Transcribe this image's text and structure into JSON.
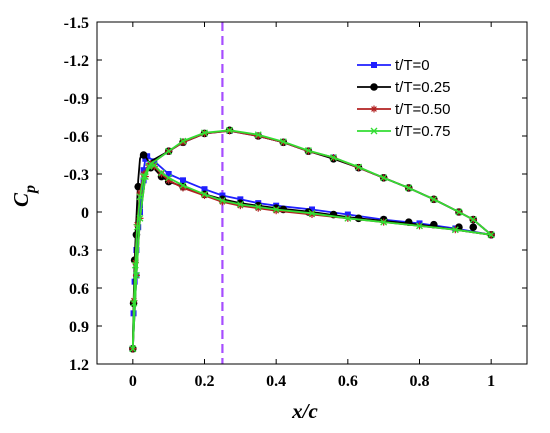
{
  "chart_data": {
    "type": "line",
    "xlabel": "x/c",
    "ylabel_main": "C",
    "ylabel_sub": "p",
    "xlim": [
      -0.1,
      1.1
    ],
    "ylim": [
      1.2,
      -1.5
    ],
    "y_reversed": true,
    "x_ticks": [
      0,
      0.2,
      0.4,
      0.6,
      0.8,
      1
    ],
    "x_tick_labels": [
      "0",
      "0.2",
      "0.4",
      "0.6",
      "0.8",
      "1"
    ],
    "y_ticks": [
      -1.5,
      -1.2,
      -0.9,
      -0.6,
      -0.3,
      0,
      0.3,
      0.6,
      0.9,
      1.2
    ],
    "y_tick_labels": [
      "-1.5",
      "-1.2",
      "-0.9",
      "-0.6",
      "-0.3",
      "0",
      "0.3",
      "0.6",
      "0.9",
      "1.2"
    ],
    "grid": false,
    "legend_position": "top-right",
    "vertical_reference_line": {
      "x": 0.25,
      "color": "#a64dff",
      "style": "dashed"
    },
    "series": [
      {
        "name": "t/T=0",
        "color": "#1f1fff",
        "marker": "square",
        "lower": [
          [
            0,
            1.08
          ],
          [
            0.002,
            0.8
          ],
          [
            0.005,
            0.55
          ],
          [
            0.01,
            0.3
          ],
          [
            0.015,
            0.12
          ],
          [
            0.02,
            -0.05
          ],
          [
            0.025,
            -0.2
          ],
          [
            0.03,
            -0.33
          ],
          [
            0.035,
            -0.42
          ],
          [
            0.04,
            -0.44
          ],
          [
            0.06,
            -0.4
          ],
          [
            0.1,
            -0.3
          ],
          [
            0.14,
            -0.25
          ],
          [
            0.2,
            -0.18
          ],
          [
            0.25,
            -0.13
          ],
          [
            0.3,
            -0.1
          ],
          [
            0.35,
            -0.07
          ],
          [
            0.4,
            -0.05
          ],
          [
            0.5,
            -0.02
          ],
          [
            0.6,
            0.02
          ],
          [
            0.7,
            0.06
          ],
          [
            0.8,
            0.09
          ],
          [
            0.9,
            0.13
          ],
          [
            1.0,
            0.18
          ]
        ],
        "upper": [
          [
            0,
            1.08
          ],
          [
            0.01,
            0.5
          ],
          [
            0.02,
            0.0
          ],
          [
            0.03,
            -0.25
          ],
          [
            0.05,
            -0.38
          ],
          [
            0.1,
            -0.48
          ],
          [
            0.14,
            -0.55
          ],
          [
            0.2,
            -0.62
          ],
          [
            0.27,
            -0.64
          ],
          [
            0.35,
            -0.6
          ],
          [
            0.42,
            -0.55
          ],
          [
            0.49,
            -0.48
          ],
          [
            0.56,
            -0.43
          ],
          [
            0.63,
            -0.35
          ],
          [
            0.7,
            -0.27
          ],
          [
            0.77,
            -0.19
          ],
          [
            0.84,
            -0.1
          ],
          [
            0.91,
            0.0
          ],
          [
            0.95,
            0.06
          ],
          [
            1.0,
            0.18
          ]
        ]
      },
      {
        "name": "t/T=0.25",
        "color": "#000000",
        "marker": "circle",
        "lower": [
          [
            0,
            1.08
          ],
          [
            0.002,
            0.72
          ],
          [
            0.005,
            0.4
          ],
          [
            0.01,
            0.05
          ],
          [
            0.015,
            -0.25
          ],
          [
            0.02,
            -0.42
          ],
          [
            0.025,
            -0.46
          ],
          [
            0.035,
            -0.44
          ],
          [
            0.05,
            -0.37
          ],
          [
            0.08,
            -0.28
          ],
          [
            0.1,
            -0.24
          ],
          [
            0.14,
            -0.2
          ],
          [
            0.2,
            -0.14
          ],
          [
            0.25,
            -0.1
          ],
          [
            0.3,
            -0.07
          ],
          [
            0.35,
            -0.05
          ],
          [
            0.4,
            -0.03
          ],
          [
            0.5,
            0.0
          ],
          [
            0.6,
            0.04
          ],
          [
            0.7,
            0.07
          ],
          [
            0.8,
            0.1
          ],
          [
            0.9,
            0.14
          ],
          [
            1.0,
            0.18
          ]
        ],
        "upper": [
          [
            0,
            1.08
          ],
          [
            0.005,
            0.62
          ],
          [
            0.01,
            0.18
          ],
          [
            0.02,
            -0.15
          ],
          [
            0.035,
            -0.32
          ],
          [
            0.05,
            -0.4
          ],
          [
            0.1,
            -0.48
          ],
          [
            0.14,
            -0.55
          ],
          [
            0.2,
            -0.62
          ],
          [
            0.27,
            -0.645
          ],
          [
            0.35,
            -0.6
          ],
          [
            0.42,
            -0.55
          ],
          [
            0.49,
            -0.48
          ],
          [
            0.56,
            -0.42
          ],
          [
            0.63,
            -0.35
          ],
          [
            0.7,
            -0.27
          ],
          [
            0.77,
            -0.19
          ],
          [
            0.84,
            -0.1
          ],
          [
            0.91,
            0.0
          ],
          [
            0.95,
            0.06
          ],
          [
            1.0,
            0.18
          ]
        ],
        "marker_points": [
          [
            0,
            1.08
          ],
          [
            0.002,
            0.72
          ],
          [
            0.005,
            0.38
          ],
          [
            0.01,
            0.18
          ],
          [
            0.015,
            -0.2
          ],
          [
            0.03,
            -0.45
          ],
          [
            0.05,
            -0.35
          ],
          [
            0.08,
            -0.28
          ],
          [
            0.1,
            -0.24
          ],
          [
            0.14,
            -0.2
          ],
          [
            0.2,
            -0.14
          ],
          [
            0.25,
            -0.1
          ],
          [
            0.3,
            -0.07
          ],
          [
            0.35,
            -0.05
          ],
          [
            0.4,
            -0.03
          ],
          [
            0.42,
            -0.02
          ],
          [
            0.49,
            0.0
          ],
          [
            0.56,
            0.02
          ],
          [
            0.63,
            0.05
          ],
          [
            0.7,
            0.06
          ],
          [
            0.77,
            0.08
          ],
          [
            0.84,
            0.1
          ],
          [
            0.91,
            0.12
          ],
          [
            0.95,
            0.12
          ],
          [
            0.1,
            -0.48
          ],
          [
            0.14,
            -0.55
          ],
          [
            0.2,
            -0.62
          ],
          [
            0.27,
            -0.645
          ],
          [
            0.35,
            -0.6
          ],
          [
            0.42,
            -0.55
          ],
          [
            0.49,
            -0.48
          ],
          [
            0.56,
            -0.42
          ],
          [
            0.63,
            -0.35
          ],
          [
            0.7,
            -0.27
          ],
          [
            0.77,
            -0.19
          ],
          [
            0.84,
            -0.1
          ],
          [
            0.91,
            0.0
          ],
          [
            0.95,
            0.06
          ],
          [
            1.0,
            0.18
          ]
        ]
      },
      {
        "name": "t/T=0.50",
        "color": "#b22222",
        "marker": "star",
        "lower": [
          [
            0,
            1.08
          ],
          [
            0.003,
            0.7
          ],
          [
            0.007,
            0.4
          ],
          [
            0.012,
            0.1
          ],
          [
            0.02,
            -0.15
          ],
          [
            0.03,
            -0.3
          ],
          [
            0.045,
            -0.37
          ],
          [
            0.06,
            -0.36
          ],
          [
            0.08,
            -0.3
          ],
          [
            0.1,
            -0.25
          ],
          [
            0.14,
            -0.19
          ],
          [
            0.2,
            -0.13
          ],
          [
            0.25,
            -0.08
          ],
          [
            0.3,
            -0.05
          ],
          [
            0.35,
            -0.03
          ],
          [
            0.4,
            -0.01
          ],
          [
            0.5,
            0.02
          ],
          [
            0.6,
            0.05
          ],
          [
            0.7,
            0.08
          ],
          [
            0.8,
            0.11
          ],
          [
            0.9,
            0.14
          ],
          [
            1.0,
            0.18
          ]
        ],
        "upper": [
          [
            0,
            1.08
          ],
          [
            0.01,
            0.5
          ],
          [
            0.02,
            0.05
          ],
          [
            0.035,
            -0.28
          ],
          [
            0.05,
            -0.38
          ],
          [
            0.1,
            -0.48
          ],
          [
            0.14,
            -0.55
          ],
          [
            0.2,
            -0.62
          ],
          [
            0.27,
            -0.64
          ],
          [
            0.35,
            -0.6
          ],
          [
            0.42,
            -0.55
          ],
          [
            0.49,
            -0.48
          ],
          [
            0.56,
            -0.43
          ],
          [
            0.63,
            -0.35
          ],
          [
            0.7,
            -0.27
          ],
          [
            0.77,
            -0.19
          ],
          [
            0.84,
            -0.1
          ],
          [
            0.91,
            0.0
          ],
          [
            0.95,
            0.06
          ],
          [
            1.0,
            0.18
          ]
        ]
      },
      {
        "name": "t/T=0.75",
        "color": "#33dd33",
        "marker": "x",
        "lower": [
          [
            0,
            1.08
          ],
          [
            0.003,
            0.72
          ],
          [
            0.007,
            0.42
          ],
          [
            0.012,
            0.12
          ],
          [
            0.02,
            -0.12
          ],
          [
            0.03,
            -0.28
          ],
          [
            0.045,
            -0.36
          ],
          [
            0.06,
            -0.37
          ],
          [
            0.08,
            -0.31
          ],
          [
            0.1,
            -0.27
          ],
          [
            0.14,
            -0.21
          ],
          [
            0.2,
            -0.14
          ],
          [
            0.25,
            -0.09
          ],
          [
            0.3,
            -0.06
          ],
          [
            0.35,
            -0.04
          ],
          [
            0.4,
            -0.02
          ],
          [
            0.5,
            0.01
          ],
          [
            0.6,
            0.05
          ],
          [
            0.7,
            0.08
          ],
          [
            0.8,
            0.11
          ],
          [
            0.9,
            0.14
          ],
          [
            1.0,
            0.18
          ]
        ],
        "upper": [
          [
            0,
            1.08
          ],
          [
            0.01,
            0.5
          ],
          [
            0.02,
            0.05
          ],
          [
            0.035,
            -0.28
          ],
          [
            0.05,
            -0.38
          ],
          [
            0.1,
            -0.48
          ],
          [
            0.14,
            -0.56
          ],
          [
            0.2,
            -0.625
          ],
          [
            0.27,
            -0.645
          ],
          [
            0.35,
            -0.61
          ],
          [
            0.42,
            -0.555
          ],
          [
            0.49,
            -0.485
          ],
          [
            0.56,
            -0.43
          ],
          [
            0.63,
            -0.355
          ],
          [
            0.7,
            -0.27
          ],
          [
            0.77,
            -0.19
          ],
          [
            0.84,
            -0.1
          ],
          [
            0.91,
            0.0
          ],
          [
            0.95,
            0.06
          ],
          [
            1.0,
            0.18
          ]
        ]
      }
    ]
  }
}
